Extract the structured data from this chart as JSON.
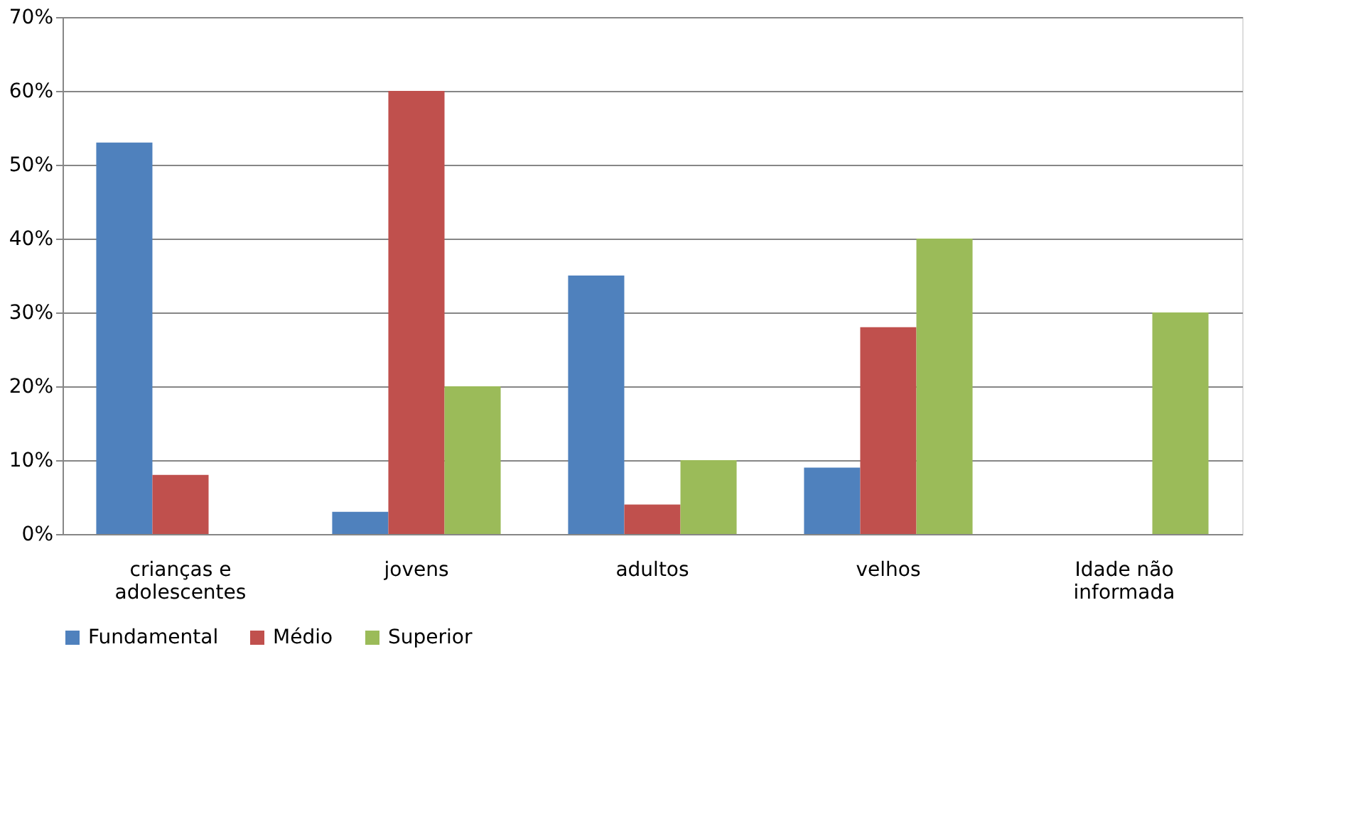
{
  "chart_data": {
    "type": "bar",
    "categories": [
      "crianças e adolescentes",
      "jovens",
      "adultos",
      "velhos",
      "Idade não informada"
    ],
    "series": [
      {
        "name": "Fundamental",
        "color": "#4f81bd",
        "values": [
          53,
          3,
          35,
          9,
          0
        ]
      },
      {
        "name": "Médio",
        "color": "#c0504d",
        "values": [
          8,
          60,
          4,
          28,
          0
        ]
      },
      {
        "name": "Superior",
        "color": "#9bbb59",
        "values": [
          0,
          20,
          10,
          40,
          30
        ]
      }
    ],
    "ylim": [
      0,
      70
    ],
    "yticks": [
      {
        "value": 0,
        "label": "0%"
      },
      {
        "value": 10,
        "label": "10%"
      },
      {
        "value": 20,
        "label": "20%"
      },
      {
        "value": 30,
        "label": "30%"
      },
      {
        "value": 40,
        "label": "40%"
      },
      {
        "value": 50,
        "label": "50%"
      },
      {
        "value": 60,
        "label": "60%"
      },
      {
        "value": 70,
        "label": "70%"
      }
    ],
    "grid": "y",
    "legend": "bottom"
  }
}
